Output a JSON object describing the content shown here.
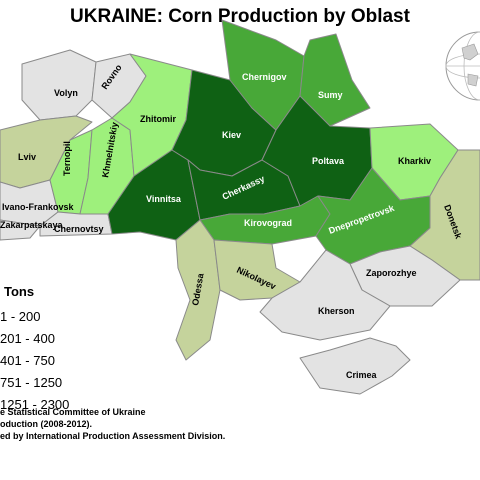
{
  "title": "UKRAINE: Corn Production by Oblast",
  "legend": {
    "title": "Tons",
    "items": [
      {
        "label": "1 - 200",
        "color": "#e3e3e3"
      },
      {
        "label": "201 - 400",
        "color": "#c5d39c"
      },
      {
        "label": "401 - 750",
        "color": "#9ef07c"
      },
      {
        "label": "751 - 1250",
        "color": "#48a838"
      },
      {
        "label": "1251 - 2300",
        "color": "#0f6114"
      }
    ]
  },
  "oblasts": [
    {
      "name": "Volyn",
      "category": 1
    },
    {
      "name": "Rovno",
      "category": 1
    },
    {
      "name": "Lviv",
      "category": 2
    },
    {
      "name": "Ivano-Frankovsk",
      "category": 1
    },
    {
      "name": "Zakarpatskaya",
      "category": 1
    },
    {
      "name": "Ternopil",
      "category": 3
    },
    {
      "name": "Khmelnitskiy",
      "category": 3
    },
    {
      "name": "Chernovtsy",
      "category": 1
    },
    {
      "name": "Zhitomir",
      "category": 3
    },
    {
      "name": "Vinnitsa",
      "category": 5
    },
    {
      "name": "Kiev",
      "category": 5
    },
    {
      "name": "Cherkassy",
      "category": 5
    },
    {
      "name": "Chernigov",
      "category": 4
    },
    {
      "name": "Sumy",
      "category": 4
    },
    {
      "name": "Poltava",
      "category": 5
    },
    {
      "name": "Kharkiv",
      "category": 3
    },
    {
      "name": "Kirovograd",
      "category": 4
    },
    {
      "name": "Dnepropetrovsk",
      "category": 4
    },
    {
      "name": "Donetsk",
      "category": 2
    },
    {
      "name": "Odessa",
      "category": 2
    },
    {
      "name": "Nikolayev",
      "category": 2
    },
    {
      "name": "Zaporozhye",
      "category": 1
    },
    {
      "name": "Kherson",
      "category": 1
    },
    {
      "name": "Crimea",
      "category": 1
    }
  ],
  "source_lines": [
    "e Statistical Committee of Ukraine",
    "oduction (2008-2012).",
    "ed by International Production Assessment Division."
  ]
}
